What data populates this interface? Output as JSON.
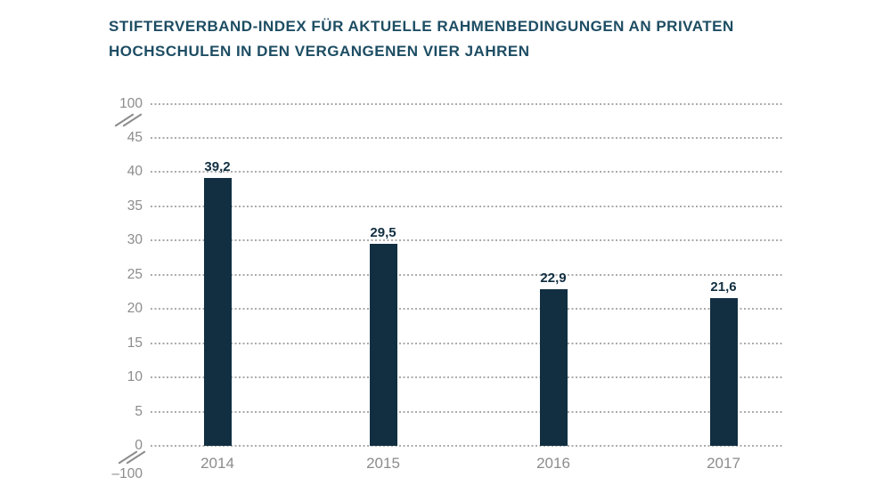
{
  "header": {
    "title_lines": [
      "STIFTERVERBAND-INDEX FÜR AKTUELLE RAHMENBEDINGUNGEN AN PRIVATEN",
      "HOCHSCHULEN IN DEN VERGANGENEN VIER JAHREN"
    ]
  },
  "chart_data": {
    "type": "bar",
    "title": "STIFTERVERBAND-INDEX FÜR AKTUELLE RAHMENBEDINGUNGEN AN PRIVATEN HOCHSCHULEN IN DEN VERGANGENEN VIER JAHREN",
    "categories": [
      "2014",
      "2015",
      "2016",
      "2017"
    ],
    "values": [
      39.2,
      29.5,
      22.9,
      21.6
    ],
    "value_labels": [
      "39,2",
      "29,5",
      "22,9",
      "21,6"
    ],
    "xlabel": "",
    "ylabel": "",
    "yticks": [
      0,
      5,
      10,
      15,
      20,
      25,
      30,
      35,
      40,
      45
    ],
    "axis_breaks": {
      "top_label": "100",
      "bottom_label": "–100"
    },
    "ylim": [
      -100,
      100
    ],
    "grid": "horizontal-dotted",
    "legend": "none",
    "colors": {
      "bar": "#112f41",
      "value_label": "#112f41",
      "title": "#1d4d63",
      "axis_text": "#8c8c8c",
      "gridline": "#ababab",
      "background": "#ffffff"
    }
  }
}
